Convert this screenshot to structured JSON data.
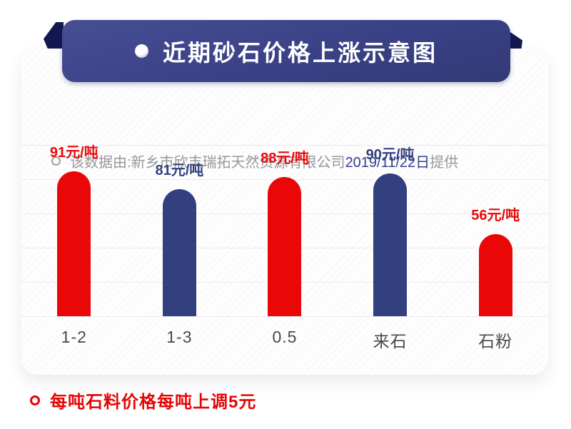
{
  "banner": {
    "title": "近期砂石价格上涨示意图",
    "accent_color": "#3a4186"
  },
  "source_note": {
    "text_gray_prefix": "该数据由:新乡市欣丰瑞拓天然资源有限公司",
    "text_blue_date": "2019/11/22日",
    "text_gray_suffix": "提供"
  },
  "chart_data": {
    "type": "bar",
    "title": "近期砂石价格上涨示意图",
    "categories": [
      "1-2",
      "1-3",
      "0.5",
      "来石",
      "石粉"
    ],
    "values": [
      91,
      81,
      88,
      90,
      56
    ],
    "unit": "元/吨",
    "value_labels": [
      "91元/吨",
      "81元/吨",
      "88元/吨",
      "90元/吨",
      "56元/吨"
    ],
    "bar_colors": [
      "#ea0707",
      "#33407f",
      "#ea0707",
      "#33407f",
      "#ea0707"
    ],
    "xlabel": "",
    "ylabel": "",
    "ylim": [
      0,
      100
    ],
    "grid": "horizontal-light",
    "legend": "none"
  },
  "footer_note": {
    "text": "每吨石料价格每吨上调5元",
    "color": "#e60505"
  }
}
